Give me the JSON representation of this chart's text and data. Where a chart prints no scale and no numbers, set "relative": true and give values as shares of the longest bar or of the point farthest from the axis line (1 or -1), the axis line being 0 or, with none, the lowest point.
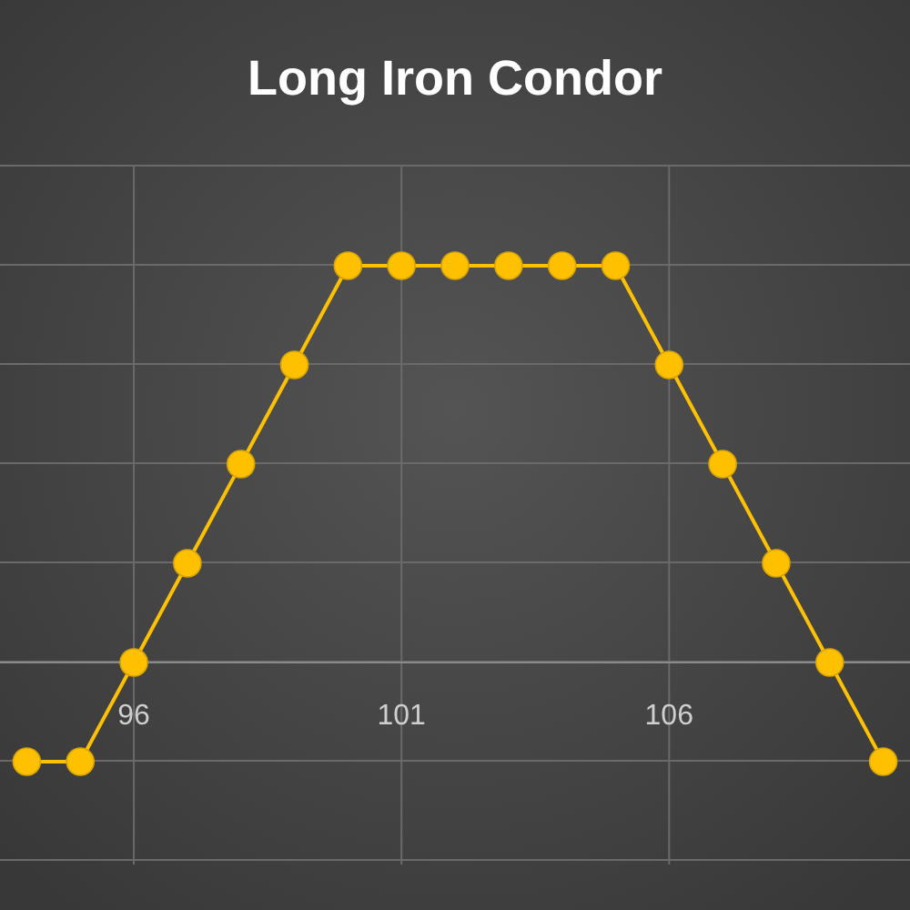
{
  "chart_data": {
    "type": "line",
    "title": "Long Iron Condor",
    "relative": true,
    "x": [
      94,
      95,
      96,
      97,
      98,
      99,
      100,
      101,
      102,
      103,
      104,
      105,
      106,
      107,
      108,
      109,
      110
    ],
    "series": [
      {
        "color": "#ffc000",
        "values": [
          -0.25,
          -0.25,
          0,
          0.25,
          0.5,
          0.75,
          1,
          1,
          1,
          1,
          1,
          1,
          0.75,
          0.5,
          0.25,
          0,
          -0.25
        ]
      }
    ],
    "xlim": [
      93.5,
      110.5
    ],
    "xticks": [
      96,
      101,
      106
    ],
    "grid": true,
    "marker": "circle",
    "line_style": "solid"
  }
}
